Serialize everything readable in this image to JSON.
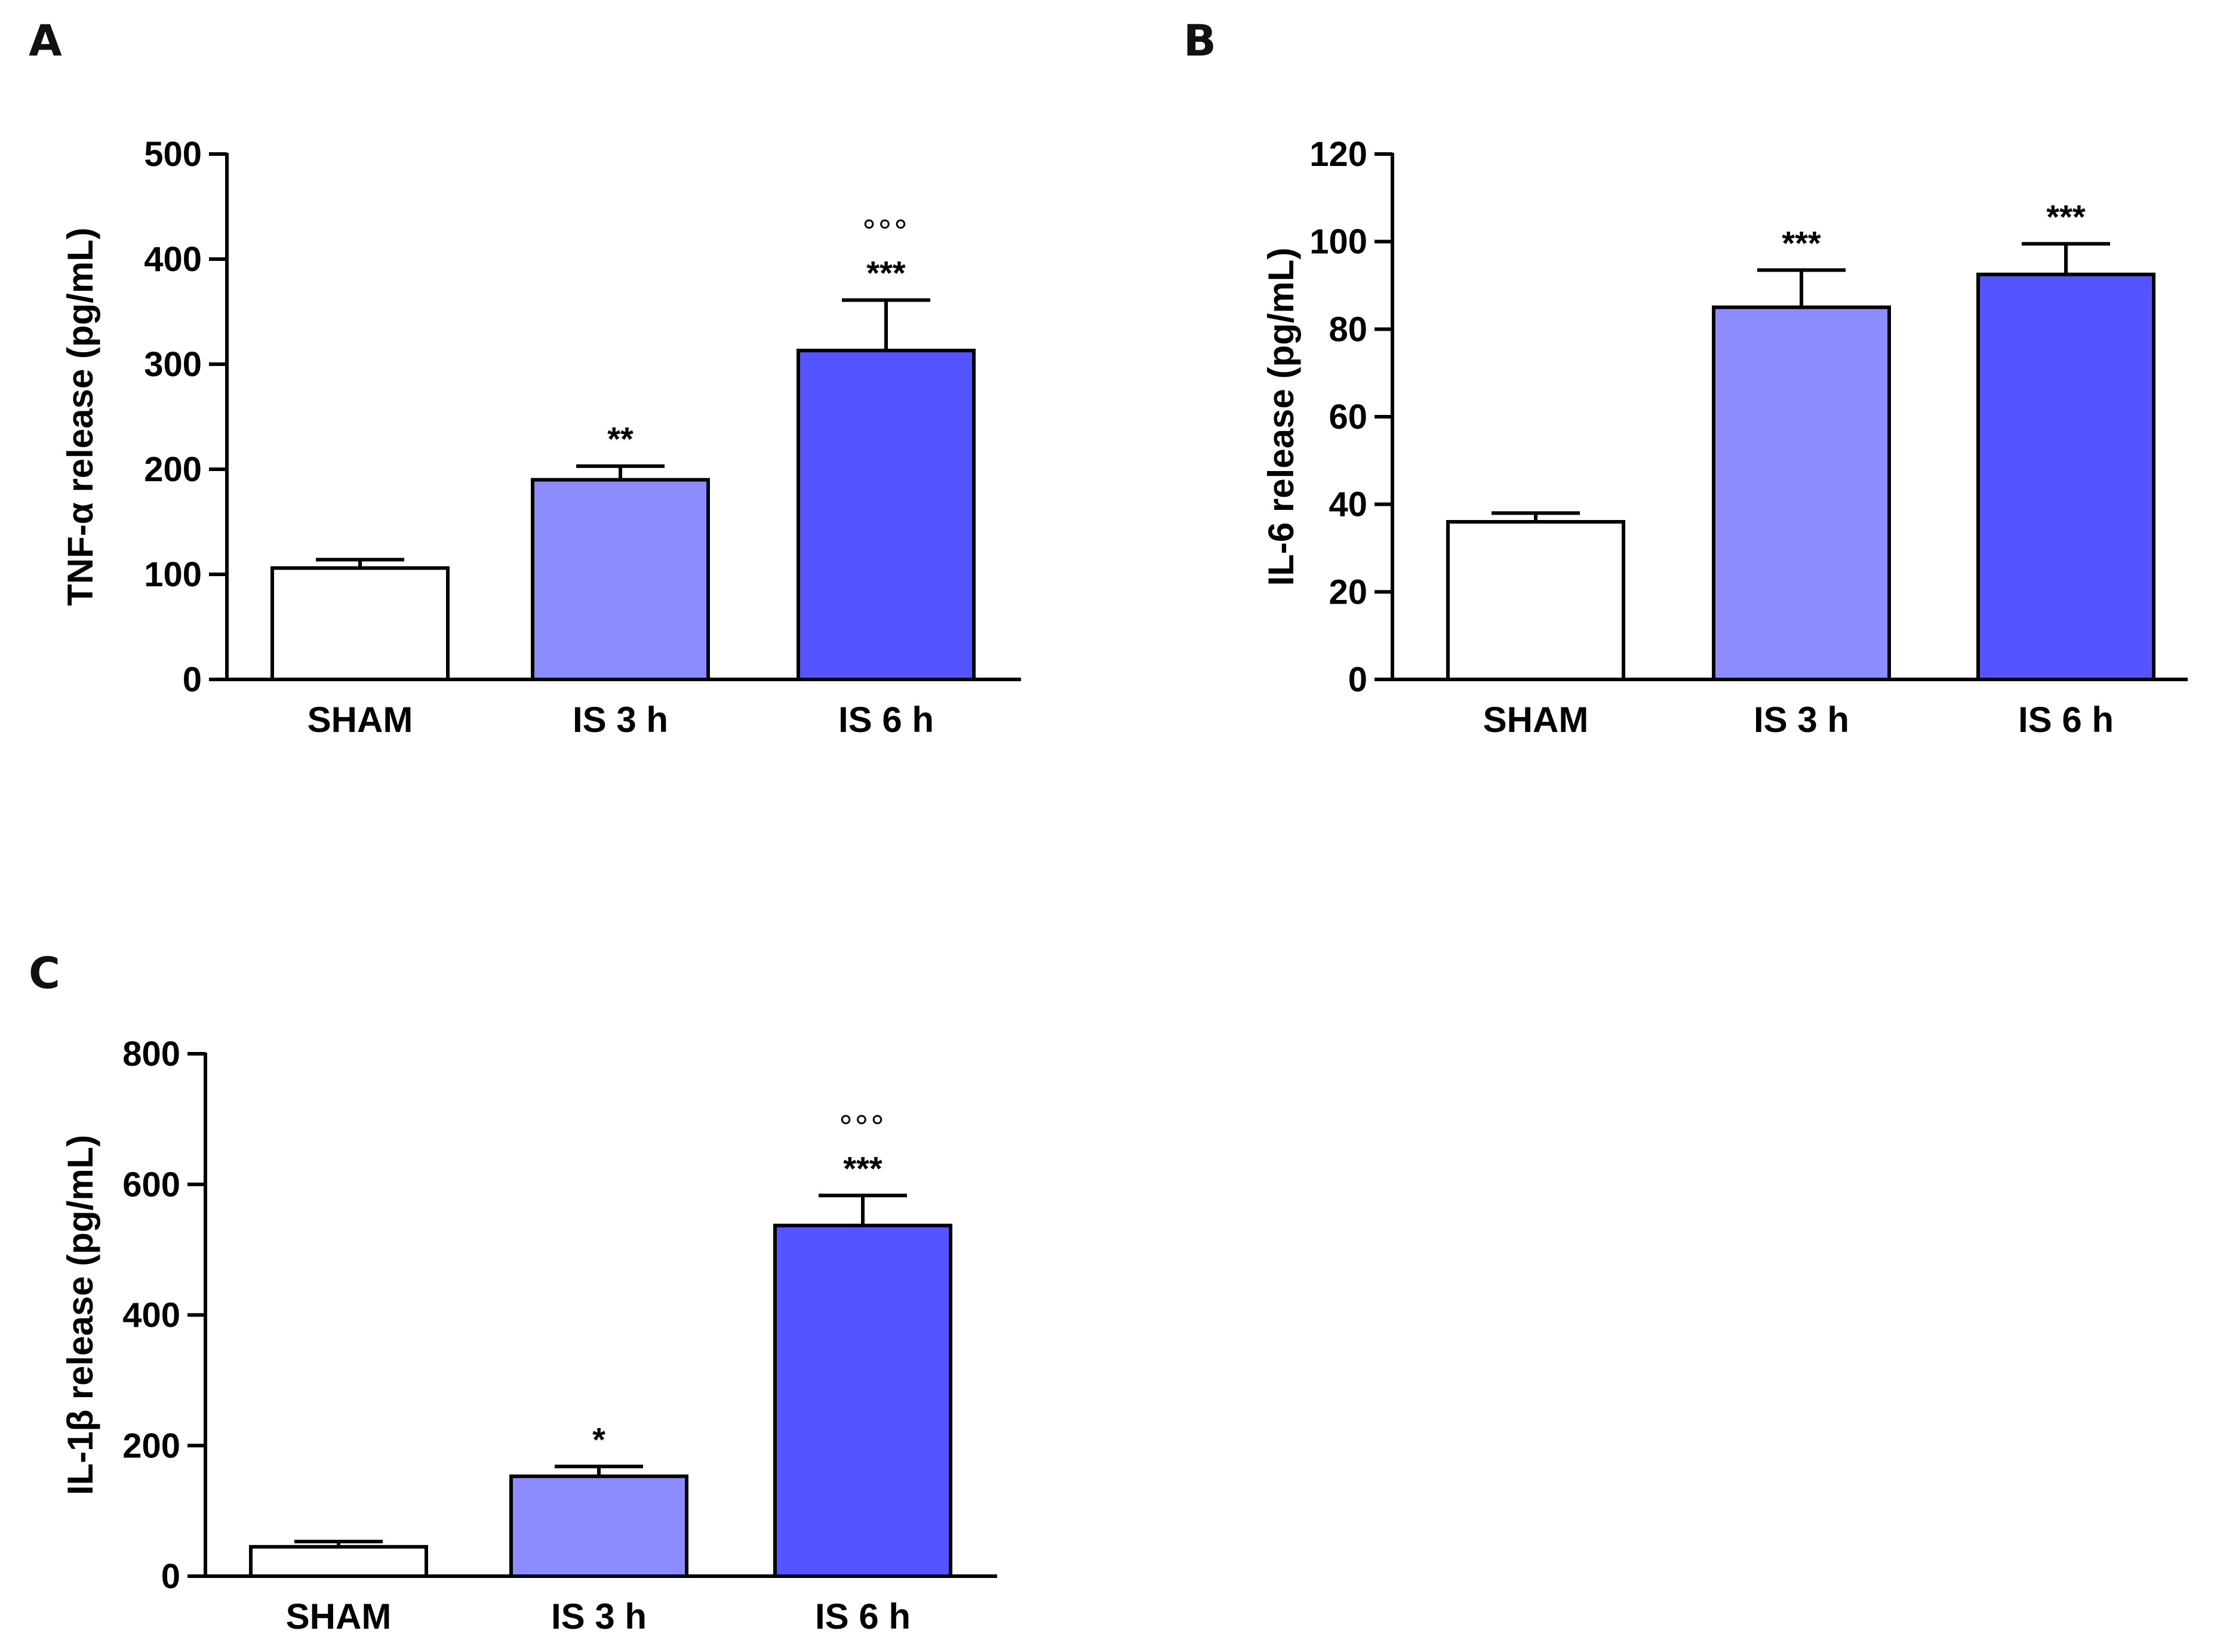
{
  "colors": {
    "axis": "#000000",
    "bar_outline": "#000000",
    "sham": "#ffffff",
    "is3h": "#8c8cff",
    "is6h": "#5555ff"
  },
  "panels": [
    {
      "letter": "A"
    },
    {
      "letter": "B"
    },
    {
      "letter": "C"
    }
  ],
  "chart_data": [
    {
      "type": "bar",
      "panel": "A",
      "title": "",
      "xlabel": "",
      "ylabel": "TNF-α release (pg/mL)",
      "ylim": [
        0,
        500
      ],
      "yticks": [
        0,
        100,
        200,
        300,
        400,
        500
      ],
      "categories": [
        "SHAM",
        "IS 3 h",
        "IS 6 h"
      ],
      "values": [
        106,
        190,
        313
      ],
      "errors": [
        8,
        13,
        48
      ],
      "annotations": [
        [
          ""
        ],
        [
          "**"
        ],
        [
          "***",
          "°°°"
        ]
      ]
    },
    {
      "type": "bar",
      "panel": "B",
      "title": "",
      "xlabel": "",
      "ylabel": "IL-6 release (pg/mL)",
      "ylim": [
        0,
        120
      ],
      "yticks": [
        0,
        20,
        40,
        60,
        80,
        100,
        120
      ],
      "categories": [
        "SHAM",
        "IS 3 h",
        "IS 6 h"
      ],
      "values": [
        36,
        85,
        92.5
      ],
      "errors": [
        2,
        8.5,
        7
      ],
      "annotations": [
        [
          ""
        ],
        [
          "***"
        ],
        [
          "***"
        ]
      ]
    },
    {
      "type": "bar",
      "panel": "C",
      "title": "",
      "xlabel": "",
      "ylabel": "IL-1β release (pg/mL)",
      "ylim": [
        0,
        800
      ],
      "yticks": [
        0,
        200,
        400,
        600,
        800
      ],
      "categories": [
        "SHAM",
        "IS 3 h",
        "IS 6 h"
      ],
      "values": [
        45,
        153,
        537
      ],
      "errors": [
        8,
        15,
        46
      ],
      "annotations": [
        [
          ""
        ],
        [
          "*"
        ],
        [
          "***",
          "°°°"
        ]
      ]
    }
  ]
}
